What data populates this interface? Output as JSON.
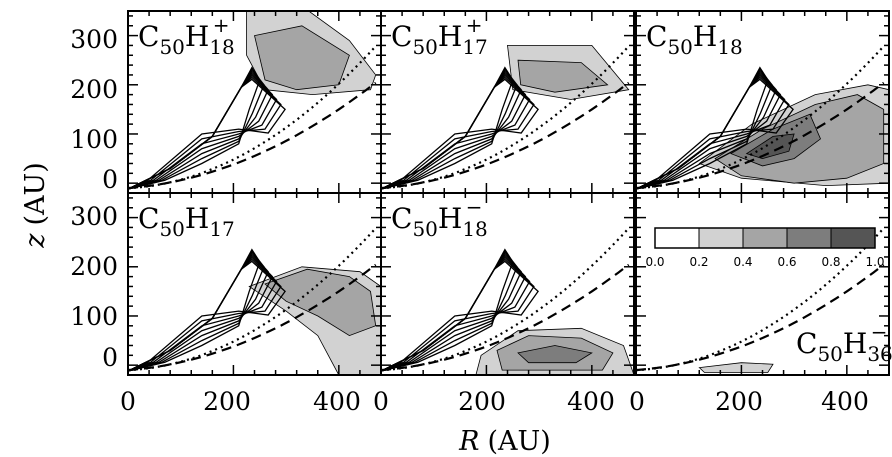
{
  "chart_data": {
    "type": "contour",
    "xlabel_var": "R",
    "xlabel_unit": "(AU)",
    "ylabel_var": "z",
    "ylabel_unit": "(AU)",
    "xlim": [
      0,
      480
    ],
    "ylim": [
      -20,
      350
    ],
    "x_ticks": [
      0,
      200,
      400
    ],
    "y_ticks": [
      0,
      100,
      200,
      300
    ],
    "x_tick_labels": [
      "0",
      "200",
      "400"
    ],
    "y_tick_labels": [
      "0",
      "100",
      "200",
      "300"
    ],
    "colorbar": {
      "ticks": [
        "0.0",
        "0.2",
        "0.4",
        "0.6",
        "0.8",
        "1.0"
      ],
      "levels": [
        0.0,
        0.2,
        0.4,
        0.6,
        0.8,
        1.0
      ],
      "colors": [
        "#ffffff",
        "#d2d2d2",
        "#a5a5a5",
        "#7d7d7d",
        "#555555"
      ]
    },
    "panels": [
      {
        "species_base": "C",
        "species_sub1": "50",
        "species_mid": "H",
        "species_sub2": "18",
        "species_sup": "+"
      },
      {
        "species_base": "C",
        "species_sub1": "50",
        "species_mid": "H",
        "species_sub2": "17",
        "species_sup": "+"
      },
      {
        "species_base": "C",
        "species_sub1": "50",
        "species_mid": "H",
        "species_sub2": "18",
        "species_sup": ""
      },
      {
        "species_base": "C",
        "species_sub1": "50",
        "species_mid": "H",
        "species_sub2": "17",
        "species_sup": ""
      },
      {
        "species_base": "C",
        "species_sub1": "50",
        "species_mid": "H",
        "species_sub2": "18",
        "species_sup": "−"
      },
      {
        "species_base": "C",
        "species_sub1": "50",
        "species_mid": "H",
        "species_sub2": "36",
        "species_sup": "−"
      }
    ]
  }
}
